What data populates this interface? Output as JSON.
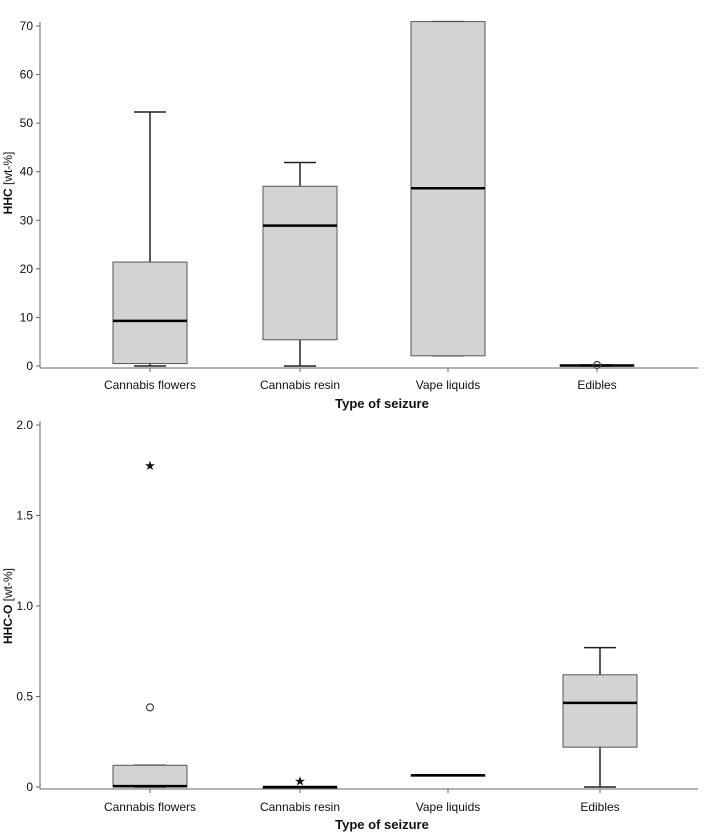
{
  "chart_data": [
    {
      "type": "box",
      "title": "",
      "xlabel": "Type of seizure",
      "ylabel_main": "HHC",
      "ylabel_unit": " [wt-%]",
      "ylim": [
        -1,
        75
      ],
      "yticks": [
        0,
        10,
        20,
        30,
        40,
        50,
        60,
        70
      ],
      "ytick_labels": [
        "0",
        "10",
        "20",
        "30",
        "40",
        "50",
        "60",
        "70"
      ],
      "categories": [
        "Cannabis flowers",
        "Cannabis resin",
        "Vape liquids",
        "Edibles"
      ],
      "boxes": [
        {
          "category": "Cannabis flowers",
          "min": 0,
          "q1": 0.5,
          "median": 9.3,
          "q3": 21.4,
          "max": 52.3,
          "outliers": []
        },
        {
          "category": "Cannabis resin",
          "min": 0,
          "q1": 5.4,
          "median": 28.9,
          "q3": 37.0,
          "max": 41.9,
          "outliers": []
        },
        {
          "category": "Vape liquids",
          "min": 2.1,
          "q1": 2.1,
          "median": 36.6,
          "q3": 70.9,
          "max": 70.9,
          "outliers": []
        },
        {
          "category": "Edibles",
          "min": 0,
          "q1": 0,
          "median": 0.1,
          "q3": 0.2,
          "max": 0.2,
          "outliers": [
            {
              "value": 0.2,
              "marker": "circle"
            }
          ]
        }
      ]
    },
    {
      "type": "box",
      "title": "",
      "xlabel": "Type of seizure",
      "ylabel_main": "HHC-O",
      "ylabel_unit": " [wt-%]",
      "ylim": [
        -0.01,
        2.0
      ],
      "yticks": [
        0,
        0.5,
        1.0,
        1.5,
        2.0
      ],
      "ytick_labels": [
        "0",
        "0.5",
        "1.0",
        "1.5",
        "2.0"
      ],
      "categories": [
        "Cannabis flowers",
        "Cannabis resin",
        "Vape liquids",
        "Edibles"
      ],
      "boxes": [
        {
          "category": "Cannabis flowers",
          "min": 0,
          "q1": 0,
          "median": 0.005,
          "q3": 0.12,
          "max": 0.12,
          "outliers": [
            {
              "value": 0.44,
              "marker": "circle"
            },
            {
              "value": 1.78,
              "marker": "star"
            }
          ]
        },
        {
          "category": "Cannabis resin",
          "min": 0,
          "q1": 0,
          "median": 0,
          "q3": 0,
          "max": 0,
          "outliers": [
            {
              "value": 0.035,
              "marker": "star"
            }
          ]
        },
        {
          "category": "Vape liquids",
          "min": 0.065,
          "q1": 0.065,
          "median": 0.065,
          "q3": 0.065,
          "max": 0.065,
          "outliers": []
        },
        {
          "category": "Edibles",
          "min": 0,
          "q1": 0.22,
          "median": 0.465,
          "q3": 0.62,
          "max": 0.77,
          "outliers": []
        }
      ]
    }
  ]
}
